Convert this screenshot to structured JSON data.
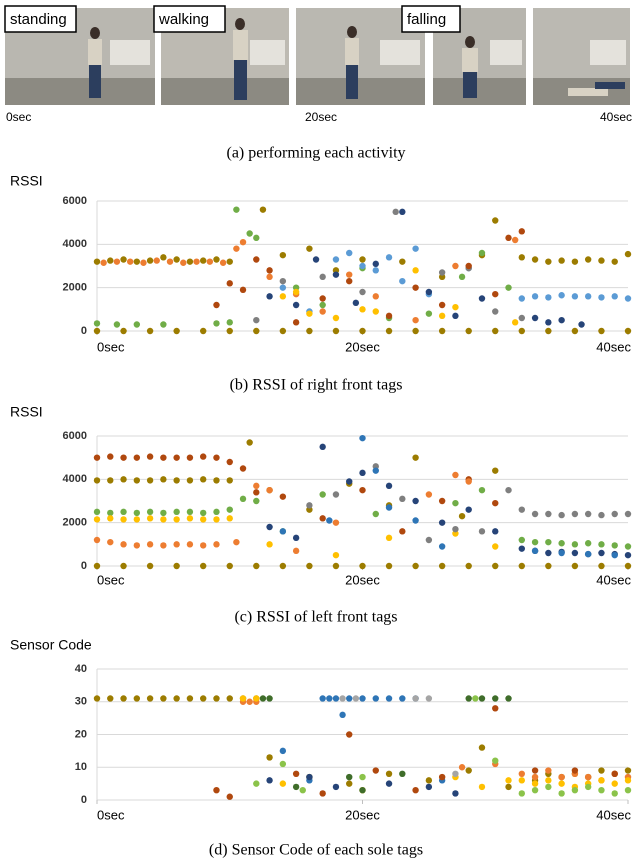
{
  "photos": {
    "labels": [
      "standing",
      "walking",
      "falling"
    ],
    "times": [
      "0sec",
      "20sec",
      "40sec"
    ],
    "caption": "(a) performing each activity"
  },
  "chart_data": [
    {
      "type": "scatter",
      "y_label": "RSSI",
      "caption": "(b) RSSI of right front tags",
      "xlim": [
        0,
        40
      ],
      "xticks": [
        {
          "value": 0,
          "label": "0sec"
        },
        {
          "value": 20,
          "label": "20sec"
        },
        {
          "value": 40,
          "label": "40sec"
        }
      ],
      "ylim": [
        0,
        6000
      ],
      "yticks": [
        0,
        2000,
        4000,
        6000
      ],
      "grid": true,
      "series": [
        {
          "color": "#9c7c00",
          "x": [
            0,
            2,
            4,
            6,
            8,
            10,
            12,
            14,
            16,
            18,
            20,
            22,
            24,
            26,
            28,
            30,
            32,
            34,
            36,
            38,
            40
          ],
          "values": [
            0,
            0,
            0,
            0,
            0,
            0,
            0,
            0,
            0,
            0,
            0,
            0,
            0,
            0,
            0,
            0,
            0,
            0,
            0,
            0,
            0
          ]
        },
        {
          "color": "#9c7c00",
          "x": [
            0,
            1,
            2,
            3,
            4,
            5,
            6,
            7,
            8,
            9,
            10,
            12.5,
            14,
            16,
            18,
            20,
            23,
            26,
            29,
            30,
            32,
            33,
            34,
            35,
            36,
            37,
            38,
            39,
            40
          ],
          "values": [
            3200,
            3250,
            3300,
            3200,
            3250,
            3400,
            3300,
            3200,
            3250,
            3300,
            3200,
            5600,
            3500,
            3800,
            2800,
            3300,
            3200,
            2500,
            3500,
            5100,
            3400,
            3300,
            3200,
            3250,
            3200,
            3300,
            3250,
            3200,
            3550
          ]
        },
        {
          "color": "#ed7d31",
          "x": [
            0.5,
            1.5,
            2.5,
            3.5,
            4.5,
            5.5,
            6.5,
            7.5,
            8.5,
            9.5,
            10.5,
            11,
            13,
            15,
            17,
            19,
            21,
            24,
            27,
            31.5
          ],
          "values": [
            3150,
            3200,
            3200,
            3150,
            3250,
            3200,
            3150,
            3200,
            3200,
            3150,
            3800,
            4100,
            2500,
            1700,
            900,
            2600,
            1600,
            500,
            3000,
            4200
          ]
        },
        {
          "color": "#70ad47",
          "x": [
            0,
            1.5,
            3,
            5,
            9,
            10,
            10.5,
            11.5,
            12,
            15,
            17,
            20,
            22,
            25,
            27.5,
            29,
            31
          ],
          "values": [
            350,
            300,
            300,
            300,
            350,
            400,
            5600,
            4500,
            4300,
            2000,
            1200,
            2900,
            600,
            800,
            2500,
            3600,
            2000
          ]
        },
        {
          "color": "#5b9bd5",
          "x": [
            14,
            16,
            18,
            19,
            20,
            21,
            22,
            23,
            24,
            25,
            28,
            32,
            33,
            34,
            35,
            36,
            37,
            38,
            39,
            40
          ],
          "values": [
            2000,
            900,
            3300,
            3600,
            3000,
            2800,
            3400,
            2300,
            3800,
            1700,
            2900,
            1500,
            1600,
            1550,
            1650,
            1600,
            1600,
            1550,
            1600,
            1500
          ]
        },
        {
          "color": "#264478",
          "x": [
            13,
            15,
            16.5,
            18,
            19.5,
            21,
            23,
            25,
            27,
            29,
            33,
            34,
            35,
            36.5
          ],
          "values": [
            1600,
            1200,
            3300,
            2600,
            1300,
            3100,
            5500,
            1800,
            700,
            1500,
            600,
            400,
            500,
            300
          ]
        },
        {
          "color": "#7f7f7f",
          "x": [
            12,
            14,
            17,
            20,
            22.5,
            26,
            28,
            30,
            32
          ],
          "values": [
            500,
            2300,
            2500,
            1800,
            5500,
            2700,
            2900,
            900,
            600
          ]
        },
        {
          "color": "#ffc000",
          "x": [
            14,
            15,
            16,
            18,
            20,
            21,
            24,
            26,
            27,
            31.5
          ],
          "values": [
            1600,
            1800,
            800,
            600,
            1000,
            900,
            2800,
            700,
            1100,
            400
          ]
        },
        {
          "color": "#b0480e",
          "x": [
            9,
            10,
            11,
            12,
            13,
            15,
            17,
            19,
            22,
            24,
            26,
            28,
            30,
            31,
            32
          ],
          "values": [
            1200,
            2200,
            1900,
            3300,
            2800,
            400,
            1500,
            2300,
            700,
            2000,
            1200,
            3000,
            1700,
            4300,
            4600
          ]
        }
      ]
    },
    {
      "type": "scatter",
      "y_label": "RSSI",
      "caption": "(c) RSSI of left front tags",
      "xlim": [
        0,
        40
      ],
      "xticks": [
        {
          "value": 0,
          "label": "0sec"
        },
        {
          "value": 20,
          "label": "20sec"
        },
        {
          "value": 40,
          "label": "40sec"
        }
      ],
      "ylim": [
        0,
        6000
      ],
      "yticks": [
        0,
        2000,
        4000,
        6000
      ],
      "grid": true,
      "series": [
        {
          "color": "#9c7c00",
          "x": [
            0,
            2,
            4,
            6,
            8,
            10,
            12,
            14,
            16,
            18,
            20,
            22,
            24,
            26,
            28,
            30,
            32,
            34,
            36,
            38,
            40
          ],
          "values": [
            0,
            0,
            0,
            0,
            0,
            0,
            0,
            0,
            0,
            0,
            0,
            0,
            0,
            0,
            0,
            0,
            0,
            0,
            0,
            0,
            0
          ]
        },
        {
          "color": "#b0480e",
          "x": [
            0,
            1,
            2,
            3,
            4,
            5,
            6,
            7,
            8,
            9,
            10,
            11,
            12,
            14,
            17,
            20,
            23,
            26,
            28,
            30
          ],
          "values": [
            5000,
            5050,
            5000,
            5000,
            5050,
            5000,
            5000,
            5000,
            5050,
            5000,
            4800,
            4500,
            3400,
            3200,
            2200,
            3500,
            1600,
            3000,
            4000,
            2900
          ]
        },
        {
          "color": "#9c7c00",
          "x": [
            0,
            1,
            2,
            3,
            4,
            5,
            6,
            7,
            8,
            9,
            10,
            11.5,
            13,
            16,
            19,
            22,
            24,
            27.5,
            30
          ],
          "values": [
            3950,
            3950,
            4000,
            3950,
            3950,
            4000,
            3950,
            3950,
            4000,
            3950,
            3950,
            5700,
            3500,
            2600,
            3800,
            2800,
            5000,
            2300,
            4400
          ]
        },
        {
          "color": "#70ad47",
          "x": [
            0,
            1,
            2,
            3,
            4,
            5,
            6,
            7,
            8,
            9,
            10,
            11,
            12,
            14,
            17,
            21,
            27,
            29,
            32,
            33,
            34,
            35,
            36,
            37,
            38,
            39,
            40
          ],
          "values": [
            2500,
            2450,
            2500,
            2450,
            2500,
            2450,
            2500,
            2500,
            2450,
            2500,
            2600,
            3100,
            3000,
            1600,
            3300,
            2400,
            2900,
            3500,
            1200,
            1100,
            1100,
            1050,
            1000,
            1050,
            1000,
            950,
            900
          ]
        },
        {
          "color": "#ffc000",
          "x": [
            0,
            1,
            2,
            3,
            4,
            5,
            6,
            7,
            8,
            9,
            10,
            13,
            18,
            22,
            27,
            30
          ],
          "values": [
            2150,
            2200,
            2150,
            2150,
            2200,
            2150,
            2150,
            2200,
            2150,
            2150,
            2200,
            1000,
            500,
            1300,
            1500,
            900
          ]
        },
        {
          "color": "#ed7d31",
          "x": [
            0,
            1,
            2,
            3,
            4,
            5,
            6,
            7,
            8,
            9,
            10.5,
            12,
            13,
            15,
            18,
            25,
            27,
            28
          ],
          "values": [
            1200,
            1100,
            1000,
            950,
            1000,
            950,
            1000,
            1000,
            950,
            1000,
            1100,
            3700,
            3500,
            700,
            2000,
            3300,
            4200,
            3900
          ]
        },
        {
          "color": "#264478",
          "x": [
            13,
            15,
            17,
            19,
            20,
            22,
            24,
            26,
            28,
            30,
            32,
            33,
            34,
            35,
            36,
            37,
            38,
            39,
            40
          ],
          "values": [
            1800,
            1300,
            5500,
            3900,
            4300,
            3700,
            3000,
            2000,
            2600,
            1600,
            800,
            700,
            600,
            650,
            600,
            550,
            600,
            550,
            500
          ]
        },
        {
          "color": "#7f7f7f",
          "x": [
            16,
            18,
            21,
            23,
            25,
            27,
            29,
            31,
            32,
            33,
            34,
            35,
            36,
            37,
            38,
            39,
            40
          ],
          "values": [
            2800,
            3300,
            4600,
            3100,
            1200,
            1700,
            1600,
            3500,
            2600,
            2400,
            2400,
            2350,
            2400,
            2400,
            2350,
            2400,
            2400
          ]
        },
        {
          "color": "#2e75b6",
          "x": [
            14,
            17.5,
            20,
            21,
            22,
            24,
            26,
            33,
            35,
            37,
            39
          ],
          "values": [
            1600,
            2100,
            5900,
            4400,
            2700,
            2100,
            900,
            700,
            600,
            550,
            500
          ]
        }
      ]
    },
    {
      "type": "scatter",
      "y_label": "Sensor Code",
      "caption": "(d) Sensor Code of each sole tags",
      "xlim": [
        0,
        40
      ],
      "xticks": [
        {
          "value": 0,
          "label": "0sec"
        },
        {
          "value": 20,
          "label": "20sec"
        },
        {
          "value": 40,
          "label": "40sec"
        }
      ],
      "ylim": [
        0,
        40
      ],
      "yticks": [
        0,
        10,
        20,
        30,
        40
      ],
      "grid": true,
      "series": [
        {
          "color": "#9c7c00",
          "x": [
            0,
            1,
            2,
            3,
            4,
            5,
            6,
            7,
            8,
            9,
            10,
            11,
            12,
            13,
            16,
            19,
            22,
            25,
            28,
            29,
            31,
            33,
            34,
            35,
            36,
            37,
            38,
            39,
            40
          ],
          "values": [
            31,
            31,
            31,
            31,
            31,
            31,
            31,
            31,
            31,
            31,
            31,
            31,
            31,
            13,
            7,
            5,
            8,
            6,
            9,
            16,
            4,
            6,
            8,
            7,
            8,
            7,
            9,
            8,
            9
          ]
        },
        {
          "color": "#ed7d31",
          "x": [
            11,
            11.5,
            12,
            27.5,
            30,
            32,
            33,
            34,
            35,
            36,
            37,
            38,
            39,
            40
          ],
          "values": [
            30,
            30,
            30,
            10,
            11,
            8,
            7,
            9,
            7,
            8,
            7,
            6,
            8,
            7
          ]
        },
        {
          "color": "#ffc000",
          "x": [
            11,
            12,
            14,
            20,
            27,
            29,
            31,
            32,
            33,
            34,
            35,
            36,
            37,
            38,
            39,
            40
          ],
          "values": [
            31,
            31,
            5,
            3,
            7,
            4,
            6,
            6,
            5,
            6,
            5,
            4,
            5,
            6,
            5,
            6
          ]
        },
        {
          "color": "#3f6d2a",
          "x": [
            12.5,
            13,
            15,
            19,
            20,
            23,
            28,
            29,
            30,
            31
          ],
          "values": [
            31,
            31,
            4,
            7,
            3,
            8,
            31,
            31,
            31,
            31
          ]
        },
        {
          "color": "#2e75b6",
          "x": [
            14,
            16,
            17,
            17.5,
            18,
            18.5,
            19,
            20,
            21,
            22,
            23,
            24,
            26
          ],
          "values": [
            15,
            6,
            31,
            31,
            31,
            26,
            31,
            31,
            31,
            31,
            31,
            31,
            6
          ]
        },
        {
          "color": "#a5a5a5",
          "x": [
            18.5,
            19.5,
            24,
            25,
            27
          ],
          "values": [
            31,
            31,
            31,
            31,
            8
          ]
        },
        {
          "color": "#8bc34a",
          "x": [
            12,
            14,
            15.5,
            20,
            28.5,
            30,
            32,
            33,
            34,
            35,
            36,
            37,
            38,
            39,
            40
          ],
          "values": [
            5,
            11,
            3,
            7,
            31,
            12,
            2,
            3,
            4,
            2,
            3,
            4,
            3,
            2,
            3
          ]
        },
        {
          "color": "#b0480e",
          "x": [
            9,
            10,
            15,
            17,
            19,
            21,
            24,
            26,
            30,
            33,
            36,
            39
          ],
          "values": [
            3,
            1,
            8,
            2,
            20,
            9,
            3,
            7,
            28,
            9,
            9,
            8
          ]
        },
        {
          "color": "#264478",
          "x": [
            13,
            16,
            18,
            22,
            25,
            27
          ],
          "values": [
            6,
            7,
            4,
            5,
            4,
            2
          ]
        }
      ]
    }
  ]
}
